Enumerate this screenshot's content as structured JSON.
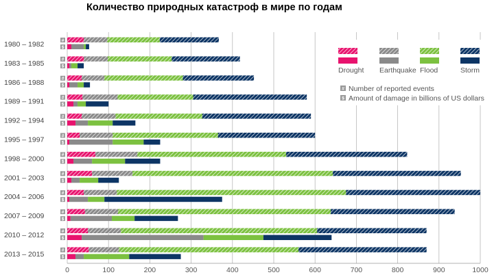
{
  "chart_data": {
    "type": "bar",
    "orientation": "horizontal",
    "stacked": true,
    "title": "Количество природных катастроф в мире по годам",
    "categories": [
      "1980 – 1982",
      "1983 – 1985",
      "1986 – 1988",
      "1989 – 1991",
      "1992 – 1994",
      "1995 – 1997",
      "1998 – 2000",
      "2001 – 2003",
      "2004 – 2006",
      "2007 – 2009",
      "2010 – 2012",
      "2013 – 2015"
    ],
    "xlim": [
      0,
      1000
    ],
    "xticks": [
      0,
      100,
      200,
      300,
      400,
      500,
      600,
      700,
      800,
      900,
      1000
    ],
    "grid": true,
    "legend_position": "top-right",
    "bar_labels": {
      "events": "#",
      "damage": "$"
    },
    "measure_legend": {
      "events": "Number of reported events",
      "damage": "Amount of damage in billions of US dollars"
    },
    "series": [
      {
        "name": "Drought",
        "color": "#e8136e",
        "events": [
          40,
          40,
          35,
          37,
          35,
          30,
          68,
          60,
          40,
          43,
          50,
          52
        ],
        "damage": [
          10,
          5,
          5,
          15,
          20,
          5,
          15,
          10,
          5,
          8,
          35,
          20
        ]
      },
      {
        "name": "Earthquake",
        "color": "#8a8a8a",
        "events": [
          57,
          58,
          55,
          85,
          82,
          80,
          102,
          98,
          80,
          80,
          80,
          73
        ],
        "damage": [
          30,
          5,
          20,
          10,
          30,
          105,
          45,
          20,
          45,
          100,
          295,
          20
        ]
      },
      {
        "name": "Flood",
        "color": "#7cc140",
        "events": [
          127,
          155,
          190,
          183,
          210,
          255,
          360,
          485,
          555,
          515,
          475,
          435
        ],
        "damage": [
          5,
          15,
          15,
          20,
          60,
          75,
          80,
          45,
          40,
          55,
          145,
          110
        ]
      },
      {
        "name": "Storm",
        "color": "#0d3565",
        "events": [
          143,
          165,
          172,
          275,
          263,
          235,
          293,
          310,
          325,
          300,
          265,
          310
        ],
        "damage": [
          8,
          15,
          15,
          55,
          55,
          40,
          85,
          50,
          285,
          105,
          165,
          125
        ]
      }
    ]
  }
}
